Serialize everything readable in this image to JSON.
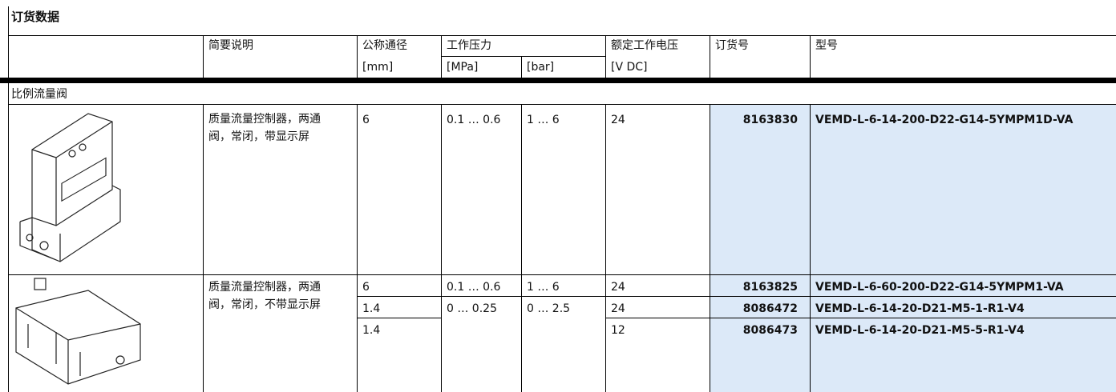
{
  "title": "订货数据",
  "header": {
    "labels": [
      "简要说明",
      "公称通径",
      "工作压力",
      "额定工作电压",
      "订货号",
      "型号"
    ],
    "units": [
      "[mm]",
      "[MPa]",
      "[bar]",
      "[V DC]"
    ]
  },
  "group": "比例流量阀",
  "products": [
    {
      "description": [
        "质量流量控制器，",
        "两通阀，常闭，带显示屏"
      ],
      "rows": [
        {
          "diameter": "6",
          "mpa": "0.1 … 0.6",
          "bar": "1 … 6",
          "voltage": "24",
          "part_no": "8163830",
          "type": "VEMD-L-6-14-200-D22-G14-5YMPM1D-VA"
        }
      ]
    },
    {
      "description": [
        "质量流量控制器，",
        "两通阀，常闭，不带显示屏"
      ],
      "rows": [
        {
          "diameter": "6",
          "mpa": "0.1 … 0.6",
          "bar": "1 … 6",
          "voltage": "24",
          "part_no": "8163825",
          "type": "VEMD-L-6-60-200-D22-G14-5YMPM1-VA"
        },
        {
          "diameter": "1.4",
          "mpa": "0 … 0.25",
          "bar": "0 … 2.5",
          "voltage": "24",
          "part_no": "8086472",
          "type": "VEMD-L-6-14-20-D21-M5-1-R1-V4"
        },
        {
          "diameter": "1.4",
          "voltage": "12",
          "part_no": "8086473",
          "type": "VEMD-L-6-14-20-D21-M5-5-R1-V4"
        }
      ]
    }
  ]
}
